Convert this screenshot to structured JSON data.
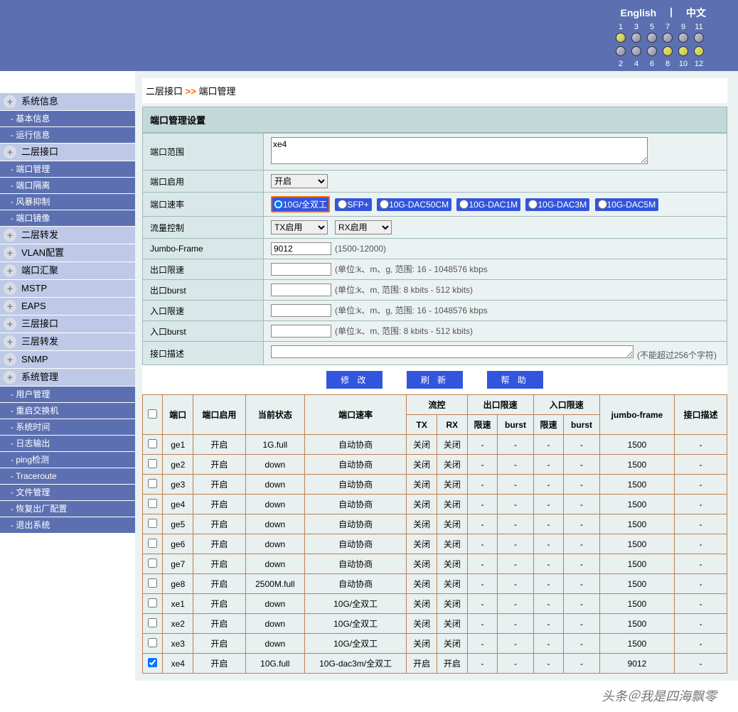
{
  "lang": {
    "en": "English",
    "zh": "中文"
  },
  "ports_top": [
    {
      "n": "1",
      "on": true
    },
    {
      "n": "3",
      "on": false
    },
    {
      "n": "5",
      "on": false
    },
    {
      "n": "7",
      "on": false
    },
    {
      "n": "9",
      "on": false
    },
    {
      "n": "11",
      "on": false
    }
  ],
  "ports_bot": [
    {
      "n": "2",
      "on": false
    },
    {
      "n": "4",
      "on": false
    },
    {
      "n": "6",
      "on": false
    },
    {
      "n": "8",
      "on": true
    },
    {
      "n": "10",
      "on": true
    },
    {
      "n": "12",
      "on": true
    }
  ],
  "nav": [
    {
      "t": "group",
      "label": "系统信息"
    },
    {
      "t": "item",
      "label": "- 基本信息"
    },
    {
      "t": "item",
      "label": "- 运行信息"
    },
    {
      "t": "group",
      "label": "二层接口"
    },
    {
      "t": "item",
      "label": "- 端口管理"
    },
    {
      "t": "item",
      "label": "- 端口隔离"
    },
    {
      "t": "item",
      "label": "- 风暴抑制"
    },
    {
      "t": "item",
      "label": "- 端口镜像"
    },
    {
      "t": "group",
      "label": "二层转发"
    },
    {
      "t": "group",
      "label": "VLAN配置"
    },
    {
      "t": "group",
      "label": "端口汇聚"
    },
    {
      "t": "group",
      "label": "MSTP"
    },
    {
      "t": "group",
      "label": "EAPS"
    },
    {
      "t": "group",
      "label": "三层接口"
    },
    {
      "t": "group",
      "label": "三层转发"
    },
    {
      "t": "group",
      "label": "SNMP"
    },
    {
      "t": "group",
      "label": "系统管理"
    },
    {
      "t": "item",
      "label": "- 用户管理"
    },
    {
      "t": "item",
      "label": "- 重启交换机"
    },
    {
      "t": "item",
      "label": "- 系统时间"
    },
    {
      "t": "item",
      "label": "- 日志输出"
    },
    {
      "t": "item",
      "label": "- ping检测"
    },
    {
      "t": "item",
      "label": "- Traceroute"
    },
    {
      "t": "item",
      "label": "- 文件管理"
    },
    {
      "t": "item",
      "label": "- 恢复出厂配置"
    },
    {
      "t": "item",
      "label": "- 退出系统"
    }
  ],
  "bc": {
    "a": "二层接口",
    "sep": ">>",
    "b": "端口管理"
  },
  "panel_title": "端口管理设置",
  "form": {
    "port_range_label": "端口范围",
    "port_range_val": "xe4",
    "enable_label": "端口启用",
    "enable_val": "开启",
    "speed_label": "端口速率",
    "speed_opts": [
      "10G/全双工",
      "SFP+",
      "10G-DAC50CM",
      "10G-DAC1M",
      "10G-DAC3M",
      "10G-DAC5M"
    ],
    "flow_label": "流量控制",
    "flow_tx": "TX启用",
    "flow_rx": "RX启用",
    "jumbo_label": "Jumbo-Frame",
    "jumbo_val": "9012",
    "jumbo_hint": "(1500-12000)",
    "out_lim_label": "出口限速",
    "out_lim_hint": "(单位:k、m、g, 范围: 16 - 1048576  kbps",
    "out_burst_label": "出口burst",
    "out_burst_hint": "(单位:k、m, 范围: 8 kbits - 512 kbits)",
    "in_lim_label": "入口限速",
    "in_lim_hint": "(单位:k、m、g, 范围: 16 - 1048576  kbps",
    "in_burst_label": "入口burst",
    "in_burst_hint": "(单位:k、m, 范围: 8 kbits - 512 kbits)",
    "desc_label": "接口描述",
    "desc_hint": "(不能超过256个字符)"
  },
  "btns": {
    "mod": "修 改",
    "refresh": "刷 新",
    "help": "帮 助"
  },
  "th": {
    "port": "端口",
    "enable": "端口启用",
    "status": "当前状态",
    "speed": "端口速率",
    "flow": "流控",
    "tx": "TX",
    "rx": "RX",
    "out": "出口限速",
    "in": "入口限速",
    "lim": "限速",
    "burst": "burst",
    "jumbo": "jumbo-frame",
    "desc": "接口描述"
  },
  "rows": [
    {
      "chk": false,
      "port": "ge1",
      "en": "开启",
      "st": "1G.full",
      "sp": "自动协商",
      "tx": "关闭",
      "rx": "关闭",
      "ol": "-",
      "ob": "-",
      "il": "-",
      "ib": "-",
      "jf": "1500",
      "d": "-"
    },
    {
      "chk": false,
      "port": "ge2",
      "en": "开启",
      "st": "down",
      "sp": "自动协商",
      "tx": "关闭",
      "rx": "关闭",
      "ol": "-",
      "ob": "-",
      "il": "-",
      "ib": "-",
      "jf": "1500",
      "d": "-"
    },
    {
      "chk": false,
      "port": "ge3",
      "en": "开启",
      "st": "down",
      "sp": "自动协商",
      "tx": "关闭",
      "rx": "关闭",
      "ol": "-",
      "ob": "-",
      "il": "-",
      "ib": "-",
      "jf": "1500",
      "d": "-"
    },
    {
      "chk": false,
      "port": "ge4",
      "en": "开启",
      "st": "down",
      "sp": "自动协商",
      "tx": "关闭",
      "rx": "关闭",
      "ol": "-",
      "ob": "-",
      "il": "-",
      "ib": "-",
      "jf": "1500",
      "d": "-"
    },
    {
      "chk": false,
      "port": "ge5",
      "en": "开启",
      "st": "down",
      "sp": "自动协商",
      "tx": "关闭",
      "rx": "关闭",
      "ol": "-",
      "ob": "-",
      "il": "-",
      "ib": "-",
      "jf": "1500",
      "d": "-"
    },
    {
      "chk": false,
      "port": "ge6",
      "en": "开启",
      "st": "down",
      "sp": "自动协商",
      "tx": "关闭",
      "rx": "关闭",
      "ol": "-",
      "ob": "-",
      "il": "-",
      "ib": "-",
      "jf": "1500",
      "d": "-"
    },
    {
      "chk": false,
      "port": "ge7",
      "en": "开启",
      "st": "down",
      "sp": "自动协商",
      "tx": "关闭",
      "rx": "关闭",
      "ol": "-",
      "ob": "-",
      "il": "-",
      "ib": "-",
      "jf": "1500",
      "d": "-"
    },
    {
      "chk": false,
      "port": "ge8",
      "en": "开启",
      "st": "2500M.full",
      "sp": "自动协商",
      "tx": "关闭",
      "rx": "关闭",
      "ol": "-",
      "ob": "-",
      "il": "-",
      "ib": "-",
      "jf": "1500",
      "d": "-"
    },
    {
      "chk": false,
      "port": "xe1",
      "en": "开启",
      "st": "down",
      "sp": "10G/全双工",
      "tx": "关闭",
      "rx": "关闭",
      "ol": "-",
      "ob": "-",
      "il": "-",
      "ib": "-",
      "jf": "1500",
      "d": "-"
    },
    {
      "chk": false,
      "port": "xe2",
      "en": "开启",
      "st": "down",
      "sp": "10G/全双工",
      "tx": "关闭",
      "rx": "关闭",
      "ol": "-",
      "ob": "-",
      "il": "-",
      "ib": "-",
      "jf": "1500",
      "d": "-"
    },
    {
      "chk": false,
      "port": "xe3",
      "en": "开启",
      "st": "down",
      "sp": "10G/全双工",
      "tx": "关闭",
      "rx": "关闭",
      "ol": "-",
      "ob": "-",
      "il": "-",
      "ib": "-",
      "jf": "1500",
      "d": "-"
    },
    {
      "chk": true,
      "port": "xe4",
      "en": "开启",
      "st": "10G.full",
      "sp": "10G-dac3m/全双工",
      "tx": "开启",
      "rx": "开启",
      "ol": "-",
      "ob": "-",
      "il": "-",
      "ib": "-",
      "jf": "9012",
      "d": "-"
    }
  ],
  "watermark": "头条＠我是四海飘零"
}
